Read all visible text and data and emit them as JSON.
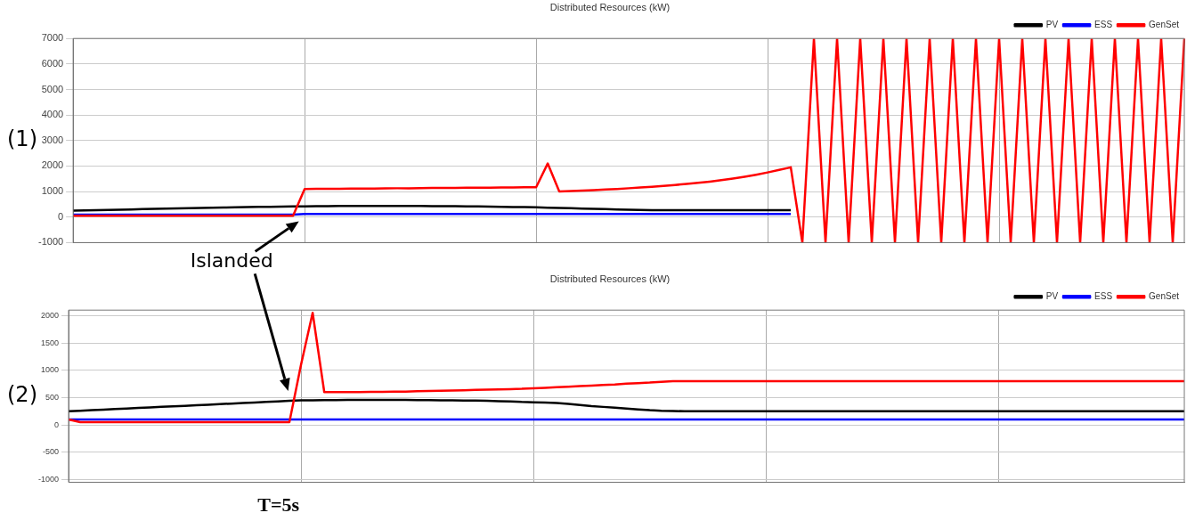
{
  "chart_data": [
    {
      "type": "line",
      "title": "Distributed Resources (kW)",
      "categories": [
        null,
        null,
        null,
        null,
        null,
        null,
        null,
        null,
        null,
        null,
        null,
        null,
        null,
        null,
        null,
        null,
        null,
        null,
        null,
        null,
        null,
        null,
        null,
        null,
        null,
        null,
        null,
        null,
        null,
        null,
        null,
        null,
        null,
        null,
        null,
        null,
        null,
        null,
        null,
        null,
        null,
        null,
        null,
        null,
        null,
        null,
        null,
        null,
        null,
        null,
        null,
        null,
        null,
        null,
        null,
        null,
        null,
        null,
        null,
        null,
        null,
        null,
        null,
        null,
        null,
        null,
        null,
        null,
        null,
        null,
        null,
        null,
        null,
        null,
        null,
        null,
        null,
        null,
        null,
        null,
        null,
        null,
        null,
        null,
        null,
        null,
        null,
        null,
        null,
        null,
        null,
        null,
        null,
        null,
        null,
        null,
        null
      ],
      "ylim": [
        -1000,
        7000
      ],
      "yticks": [
        -1000,
        0,
        1000,
        2000,
        3000,
        4000,
        5000,
        6000,
        7000
      ],
      "tick_labels": "y",
      "grid": true,
      "legend": "top right",
      "marker": "none",
      "line_style": "solid",
      "series": [
        {
          "name": "PV",
          "color": "#000000",
          "values": [
            250,
            260,
            270,
            280,
            290,
            300,
            310,
            320,
            330,
            340,
            350,
            355,
            365,
            375,
            380,
            390,
            400,
            405,
            410,
            415,
            420,
            425,
            430,
            435,
            440,
            440,
            440,
            440,
            435,
            435,
            435,
            430,
            430,
            425,
            420,
            415,
            410,
            400,
            395,
            390,
            380,
            370,
            360,
            345,
            330,
            320,
            310,
            300,
            290,
            280,
            270,
            270,
            270,
            270,
            270,
            270,
            270,
            270,
            270,
            270,
            270,
            270,
            270,
            null,
            null,
            null,
            null,
            null,
            null,
            null,
            null,
            null,
            null,
            null,
            null,
            null,
            null,
            null,
            null,
            null,
            null,
            null,
            null,
            null,
            null,
            null,
            null,
            null,
            null,
            null,
            null,
            null,
            null,
            null,
            null,
            null,
            null
          ]
        },
        {
          "name": "ESS",
          "color": "#0000ff",
          "values": [
            100,
            100,
            100,
            100,
            100,
            100,
            100,
            100,
            100,
            100,
            100,
            100,
            100,
            100,
            100,
            100,
            100,
            100,
            100,
            100,
            120,
            120,
            120,
            120,
            120,
            120,
            120,
            120,
            120,
            120,
            120,
            120,
            120,
            120,
            120,
            120,
            120,
            120,
            120,
            120,
            120,
            120,
            120,
            120,
            120,
            120,
            120,
            120,
            120,
            120,
            120,
            120,
            120,
            120,
            120,
            120,
            120,
            120,
            120,
            120,
            120,
            120,
            120,
            null,
            null,
            null,
            null,
            null,
            null,
            null,
            null,
            null,
            null,
            null,
            null,
            null,
            null,
            null,
            null,
            null,
            null,
            null,
            null,
            null,
            null,
            null,
            null,
            null,
            null,
            null,
            null,
            null,
            null,
            null,
            null,
            null,
            null
          ]
        },
        {
          "name": "GenSet",
          "color": "#ff0000",
          "values": [
            50,
            50,
            50,
            50,
            50,
            50,
            50,
            50,
            50,
            50,
            50,
            50,
            50,
            50,
            50,
            50,
            50,
            50,
            50,
            50,
            1100,
            1105,
            1110,
            1110,
            1115,
            1120,
            1120,
            1125,
            1130,
            1130,
            1135,
            1140,
            1140,
            1145,
            1150,
            1150,
            1155,
            1160,
            1160,
            1165,
            1170,
            2100,
            1000,
            1020,
            1040,
            1060,
            1080,
            1100,
            1130,
            1160,
            1190,
            1220,
            1260,
            1300,
            1340,
            1390,
            1450,
            1510,
            1580,
            1660,
            1750,
            1850,
            1950,
            -1000,
            7000,
            -1000,
            7000,
            -1000,
            7000,
            -1000,
            7000,
            -1000,
            7000,
            -1000,
            7000,
            -1000,
            7000,
            -1000,
            7000,
            -1000,
            7000,
            -1000,
            7000,
            -1000,
            7000,
            -1000,
            7000,
            -1000,
            7000,
            -1000,
            7000,
            -1000,
            7000,
            -1000,
            7000,
            -1000,
            7000
          ]
        }
      ],
      "annotations": [
        "(1)",
        "Islanded"
      ]
    },
    {
      "type": "line",
      "title": "Distributed Resources (kW)",
      "categories": [
        null,
        null,
        null,
        null,
        null,
        null,
        null,
        null,
        null,
        null,
        null,
        null,
        null,
        null,
        null,
        null,
        null,
        null,
        null,
        null,
        null,
        null,
        null,
        null,
        null,
        null,
        null,
        null,
        null,
        null,
        null,
        null,
        null,
        null,
        null,
        null,
        null,
        null,
        null,
        null,
        null,
        null,
        null,
        null,
        null,
        null,
        null,
        null,
        null,
        null,
        null,
        null,
        null,
        null,
        null,
        null,
        null,
        null,
        null,
        null,
        null,
        null,
        null,
        null,
        null,
        null,
        null,
        null,
        null,
        null,
        null,
        null,
        null,
        null,
        null,
        null,
        null,
        null,
        null,
        null,
        null,
        null,
        null,
        null,
        null,
        null,
        null,
        null,
        null,
        null,
        null,
        null,
        null,
        null,
        null,
        null,
        null
      ],
      "ylim": [
        -1050,
        2100
      ],
      "yticks": [
        -1000,
        -500,
        0,
        500,
        1000,
        1500,
        2000
      ],
      "tick_labels": "y",
      "grid": true,
      "legend": "top right",
      "marker": "none",
      "line_style": "solid",
      "series": [
        {
          "name": "PV",
          "color": "#000000",
          "values": [
            250,
            260,
            270,
            280,
            290,
            300,
            310,
            320,
            330,
            340,
            350,
            360,
            370,
            380,
            390,
            400,
            410,
            420,
            430,
            440,
            450,
            450,
            455,
            455,
            460,
            460,
            460,
            460,
            460,
            460,
            455,
            455,
            450,
            450,
            445,
            445,
            440,
            435,
            430,
            420,
            415,
            410,
            400,
            385,
            365,
            345,
            330,
            315,
            300,
            285,
            270,
            260,
            255,
            250,
            250,
            250,
            250,
            250,
            250,
            250,
            250,
            250,
            250,
            250,
            250,
            250,
            250,
            250,
            250,
            250,
            250,
            250,
            250,
            250,
            250,
            250,
            250,
            250,
            250,
            250,
            250,
            250,
            250,
            250,
            250,
            250,
            250,
            250,
            250,
            250,
            250,
            250,
            250,
            250,
            250,
            250,
            250
          ]
        },
        {
          "name": "ESS",
          "color": "#0000ff",
          "values": [
            100,
            100,
            100,
            100,
            100,
            100,
            100,
            100,
            100,
            100,
            100,
            100,
            100,
            100,
            100,
            100,
            100,
            100,
            100,
            100,
            100,
            100,
            100,
            100,
            100,
            100,
            100,
            100,
            100,
            100,
            100,
            100,
            100,
            100,
            100,
            100,
            100,
            100,
            100,
            100,
            100,
            100,
            100,
            100,
            100,
            100,
            100,
            100,
            100,
            100,
            100,
            100,
            100,
            100,
            100,
            100,
            100,
            100,
            100,
            100,
            100,
            100,
            100,
            100,
            100,
            100,
            100,
            100,
            100,
            100,
            100,
            100,
            100,
            100,
            100,
            100,
            100,
            100,
            100,
            100,
            100,
            100,
            100,
            100,
            100,
            100,
            100,
            100,
            100,
            100,
            100,
            100,
            100,
            100,
            100,
            100,
            100
          ]
        },
        {
          "name": "GenSet",
          "color": "#ff0000",
          "values": [
            100,
            50,
            50,
            50,
            50,
            50,
            50,
            50,
            50,
            50,
            50,
            50,
            50,
            50,
            50,
            50,
            50,
            50,
            50,
            50,
            1100,
            2050,
            600,
            600,
            600,
            602,
            604,
            606,
            608,
            610,
            615,
            620,
            625,
            630,
            635,
            640,
            645,
            650,
            655,
            660,
            670,
            680,
            690,
            700,
            710,
            720,
            730,
            740,
            755,
            765,
            775,
            790,
            800,
            800,
            800,
            800,
            800,
            800,
            800,
            800,
            800,
            800,
            800,
            800,
            800,
            800,
            800,
            800,
            800,
            800,
            800,
            800,
            800,
            800,
            800,
            800,
            800,
            800,
            800,
            800,
            800,
            800,
            800,
            800,
            800,
            800,
            800,
            800,
            800,
            800,
            800,
            800,
            800,
            800,
            800,
            800,
            800
          ]
        }
      ],
      "annotations": [
        "(2)",
        "T=5s"
      ]
    }
  ]
}
